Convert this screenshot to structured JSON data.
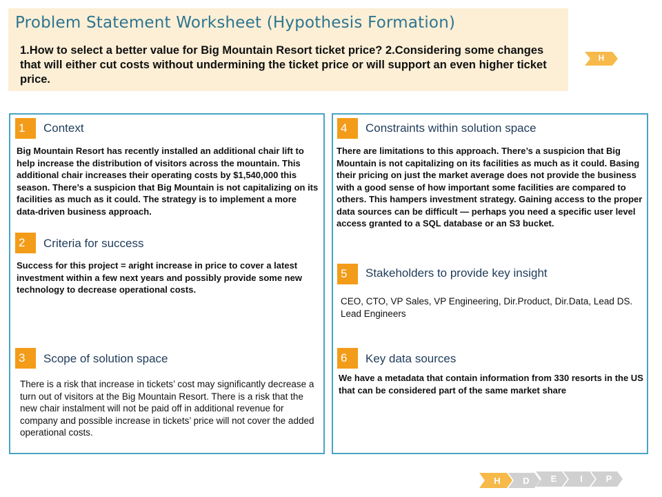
{
  "header": {
    "title": "Problem Statement Worksheet (Hypothesis Formation)",
    "question": "1.How to select a better value for Big Mountain Resort ticket price? 2.Considering some changes that will either cut costs without undermining the ticket price or will support an even higher ticket price.",
    "tag": "H"
  },
  "sections": {
    "context": {
      "number": "1",
      "title": "Context",
      "body": "Big Mountain Resort has recently installed an additional chair lift to help increase the distribution of visitors across the mountain. This additional chair increases their operating costs by $1,540,000 this season. There’s a suspicion that Big Mountain is not capitalizing on its facilities as much as it could. The strategy is to implement a more data-driven business approach."
    },
    "criteria": {
      "number": "2",
      "title": "Criteria for success",
      "body": "Success for this project = aright increase in price to cover a latest investment within a few next years and possibly provide some new technology to decrease operational costs."
    },
    "scope": {
      "number": "3",
      "title": "Scope of solution space",
      "body": "There is a risk that increase in tickets’ cost may significantly decrease a turn out of visitors at the Big Mountain Resort. There is a risk that the new chair instalment will not be paid off in additional revenue for company and possible increase in tickets’ price will not cover the added operational costs."
    },
    "constraints": {
      "number": "4",
      "title": "Constraints within solution space",
      "body": "There are limitations to this approach. There’s a suspicion that Big Mountain is not capitalizing on its facilities as much as it could. Basing their pricing on just the market average does not provide the business with a good sense of how important some facilities are compared to others. This hampers investment strategy. Gaining access to the proper data sources can be difficult — perhaps you need a specific user level access granted to a SQL database or an S3 bucket."
    },
    "stakeholders": {
      "number": "5",
      "title": "Stakeholders to provide key insight",
      "body": "CEO,  CTO, VP Sales, VP Engineering, Dir.Product, Dir.Data, Lead DS. Lead Engineers"
    },
    "data_sources": {
      "number": "6",
      "title": "Key data sources",
      "body": "We have a metadata that contain information from 330 resorts in the US that can be considered part of the same market share"
    }
  },
  "nav": {
    "steps": [
      "H",
      "D",
      "E",
      "I",
      "P"
    ],
    "active_color": "#f6b94a",
    "inactive_color": "#d0d0d0"
  },
  "colors": {
    "accent_orange": "#f39c19",
    "panel_border": "#4aa3c3",
    "title_blue": "#2e7590",
    "header_bg": "#fcefd6"
  }
}
